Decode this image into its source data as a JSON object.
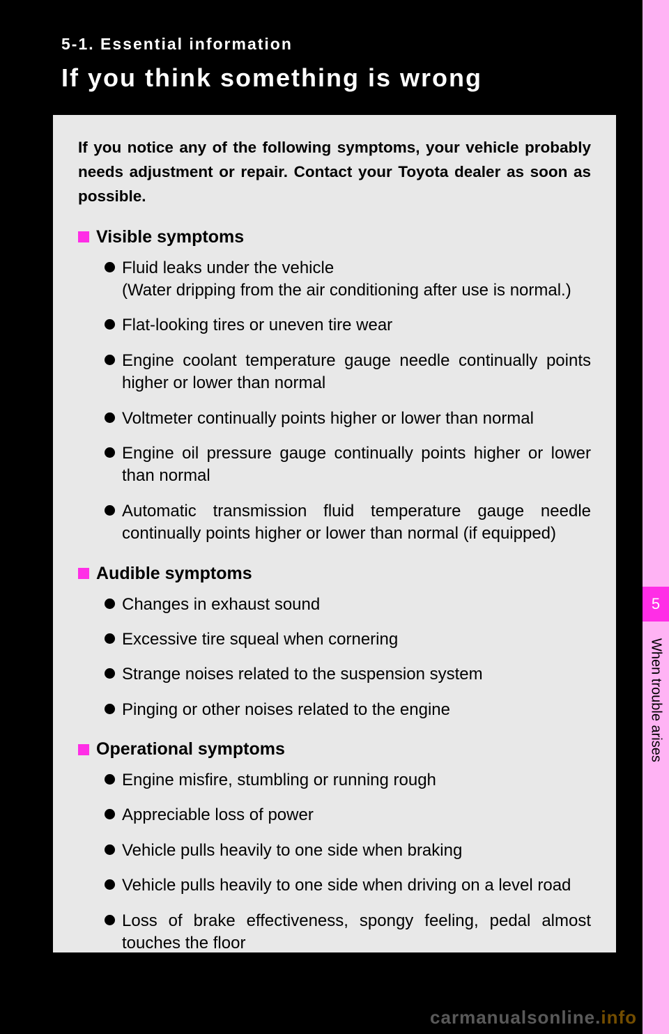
{
  "colors": {
    "page_bg": "#000000",
    "box_bg": "#e8e8e8",
    "accent_pink": "#ff2ee6",
    "tab_light": "#ffb3f4",
    "text": "#000000",
    "header_text": "#ffffff"
  },
  "header": {
    "section_label": "5-1. Essential information",
    "title": "If you think something is wrong"
  },
  "intro": "If you notice any of the following symptoms, your vehicle probably needs adjustment or repair. Contact your Toyota dealer as soon as possible.",
  "sections": [
    {
      "title": "Visible symptoms",
      "items": [
        {
          "text": "Fluid leaks under the vehicle",
          "sub": "(Water dripping from the air conditioning after use is normal.)"
        },
        {
          "text": "Flat-looking tires or uneven tire wear"
        },
        {
          "text": "Engine coolant temperature gauge needle continually points higher or lower than normal"
        },
        {
          "text": "Voltmeter continually points higher or lower than normal"
        },
        {
          "text": "Engine oil pressure gauge continually points higher or lower than normal"
        },
        {
          "text": "Automatic transmission fluid temperature gauge needle continually points higher or lower than normal (if equipped)"
        }
      ]
    },
    {
      "title": "Audible symptoms",
      "items": [
        {
          "text": "Changes in exhaust sound"
        },
        {
          "text": "Excessive tire squeal when cornering"
        },
        {
          "text": "Strange noises related to the suspension system"
        },
        {
          "text": "Pinging or other noises related to the engine"
        }
      ]
    },
    {
      "title": "Operational symptoms",
      "items": [
        {
          "text": "Engine misfire, stumbling or running rough"
        },
        {
          "text": "Appreciable loss of power"
        },
        {
          "text": "Vehicle pulls heavily to one side when braking"
        },
        {
          "text": "Vehicle pulls heavily to one side when driving on a level road"
        },
        {
          "text": "Loss of brake effectiveness, spongy feeling, pedal almost touches the floor"
        }
      ]
    }
  ],
  "side_tab": {
    "chapter_number": "5",
    "chapter_label": "When trouble arises"
  },
  "watermark": {
    "main": "carmanualsonline.",
    "suffix": "info"
  }
}
